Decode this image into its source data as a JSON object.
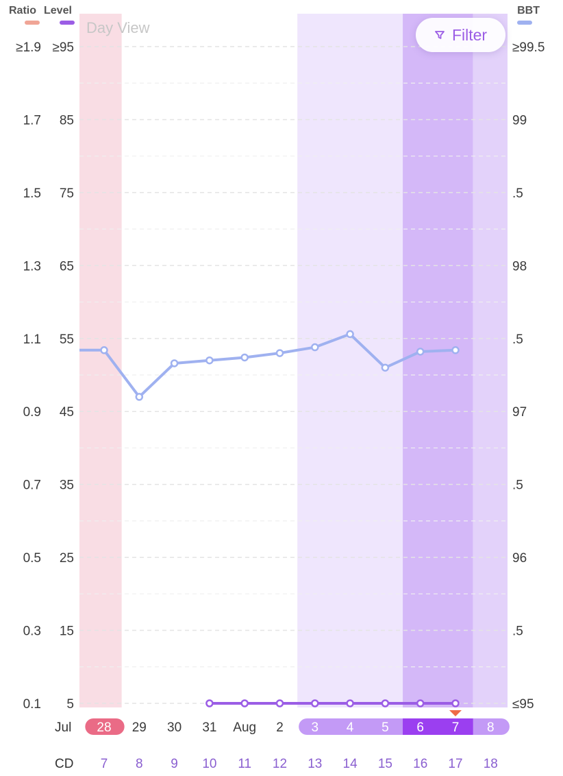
{
  "view_title": "Day View",
  "filter": {
    "label": "Filter",
    "icon": "filter-icon"
  },
  "colors": {
    "ratio": "#f0a596",
    "level": "#9b5de5",
    "bbt": "#9fb1f0",
    "period_band": "#f9dde4",
    "fertile_band": "#efe6fd",
    "peak_band": "#d4b8f8",
    "post_peak_band": "#e3d2fa",
    "date_pill_period": "#ea6b86",
    "date_pill_fertile": "#c39af6",
    "date_pill_peak": "#9b3ff0",
    "today_marker": "#ef6a48"
  },
  "legend": [
    {
      "label": "Ratio",
      "color": "#f0a596"
    },
    {
      "label": "Level",
      "color": "#9b5de5"
    },
    {
      "label": "BBT",
      "color": "#9fb1f0"
    }
  ],
  "chart_data": {
    "type": "line",
    "title": "",
    "axes": {
      "ratio": {
        "title": "Ratio",
        "ticks": [
          "≥1.9",
          "1.7",
          "1.5",
          "1.3",
          "1.1",
          "0.9",
          "0.7",
          "0.5",
          "0.3",
          "0.1"
        ],
        "range": [
          0.1,
          1.9
        ]
      },
      "level": {
        "title": "Level",
        "ticks": [
          "≥95",
          "85",
          "75",
          "65",
          "55",
          "45",
          "35",
          "25",
          "15",
          "5"
        ],
        "range": [
          5,
          95
        ]
      },
      "bbt": {
        "title": "BBT",
        "ticks": [
          "≥99.5",
          "99",
          ".5",
          "98",
          ".5",
          "97",
          ".5",
          "96",
          ".5",
          "≤95"
        ],
        "range": [
          95,
          99.5
        ]
      }
    },
    "x_row_labels": {
      "month": "Jul",
      "cycle_day": "CD"
    },
    "dates": [
      "28",
      "29",
      "30",
      "31",
      "Aug",
      "2",
      "3",
      "4",
      "5",
      "6",
      "7",
      "8"
    ],
    "cycle_days": [
      "7",
      "8",
      "9",
      "10",
      "11",
      "12",
      "13",
      "14",
      "15",
      "16",
      "17",
      "18"
    ],
    "date_pill_groups": [
      {
        "start": 0,
        "end": 0,
        "kind": "period"
      },
      {
        "start": 6,
        "end": 8,
        "kind": "fertile"
      },
      {
        "start": 9,
        "end": 10,
        "kind": "peak"
      },
      {
        "start": 11,
        "end": 11,
        "kind": "fertile"
      }
    ],
    "bands": [
      {
        "start": 0,
        "end": 0,
        "kind": "period"
      },
      {
        "start": 6,
        "end": 8,
        "kind": "fertile"
      },
      {
        "start": 9,
        "end": 10,
        "kind": "peak"
      },
      {
        "start": 11,
        "end": 11,
        "kind": "post_peak"
      }
    ],
    "today_index": 10,
    "series": [
      {
        "axis": "bbt",
        "values": [
          97.42,
          97.1,
          97.33,
          97.35,
          97.37,
          97.4,
          97.44,
          97.53,
          97.3,
          97.41,
          97.42,
          null
        ],
        "extends_left": true
      },
      {
        "axis": "level",
        "values": [
          null,
          null,
          null,
          5,
          5,
          5,
          5,
          5,
          5,
          5,
          5,
          null
        ]
      }
    ],
    "grid": true
  }
}
